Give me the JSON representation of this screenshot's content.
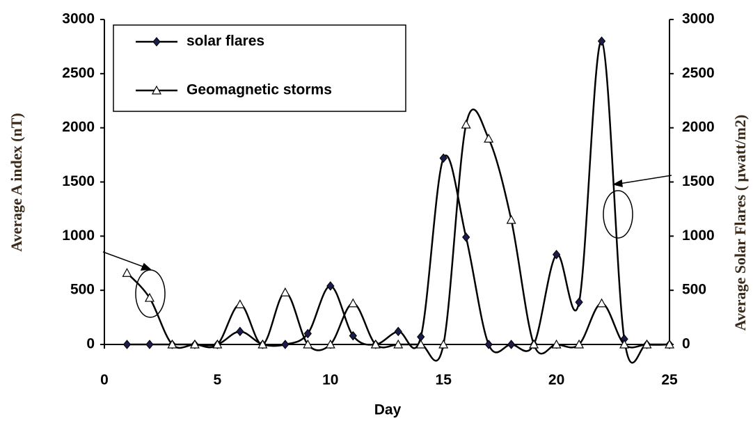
{
  "chart_data": {
    "type": "line",
    "x_label": "Day",
    "y_label": "Average A index (nT)",
    "y2_label": "Average Solar Flares ( μwatt/m2)",
    "x": [
      1,
      2,
      3,
      4,
      5,
      6,
      7,
      8,
      9,
      10,
      11,
      12,
      13,
      14,
      15,
      16,
      17,
      18,
      19,
      20,
      21,
      22,
      23,
      24,
      25
    ],
    "series": [
      {
        "name": "solar flares",
        "color": "#000000",
        "marker": "diamond",
        "axis": "y2",
        "values": [
          0,
          0,
          0,
          0,
          0,
          120,
          0,
          0,
          100,
          540,
          80,
          0,
          120,
          70,
          1720,
          990,
          0,
          0,
          0,
          830,
          390,
          2800,
          50,
          0,
          0
        ]
      },
      {
        "name": "Geomagnetic storms",
        "color": "#000000",
        "marker": "triangle",
        "values": [
          660,
          430,
          0,
          0,
          0,
          370,
          0,
          480,
          0,
          0,
          380,
          0,
          0,
          0,
          0,
          2030,
          1900,
          1150,
          0,
          0,
          0,
          380,
          0,
          0,
          0
        ]
      }
    ],
    "xlim": [
      0,
      25
    ],
    "xticks": [
      0,
      5,
      10,
      15,
      20,
      25
    ],
    "ylim": [
      0,
      3000
    ],
    "yticks": [
      0,
      500,
      1000,
      1500,
      2000,
      2500,
      3000
    ],
    "y2lim": [
      0,
      3000
    ],
    "y2ticks": [
      0,
      500,
      1000,
      1500,
      2000,
      2500,
      3000
    ],
    "grid": false,
    "legend": "upper left"
  }
}
